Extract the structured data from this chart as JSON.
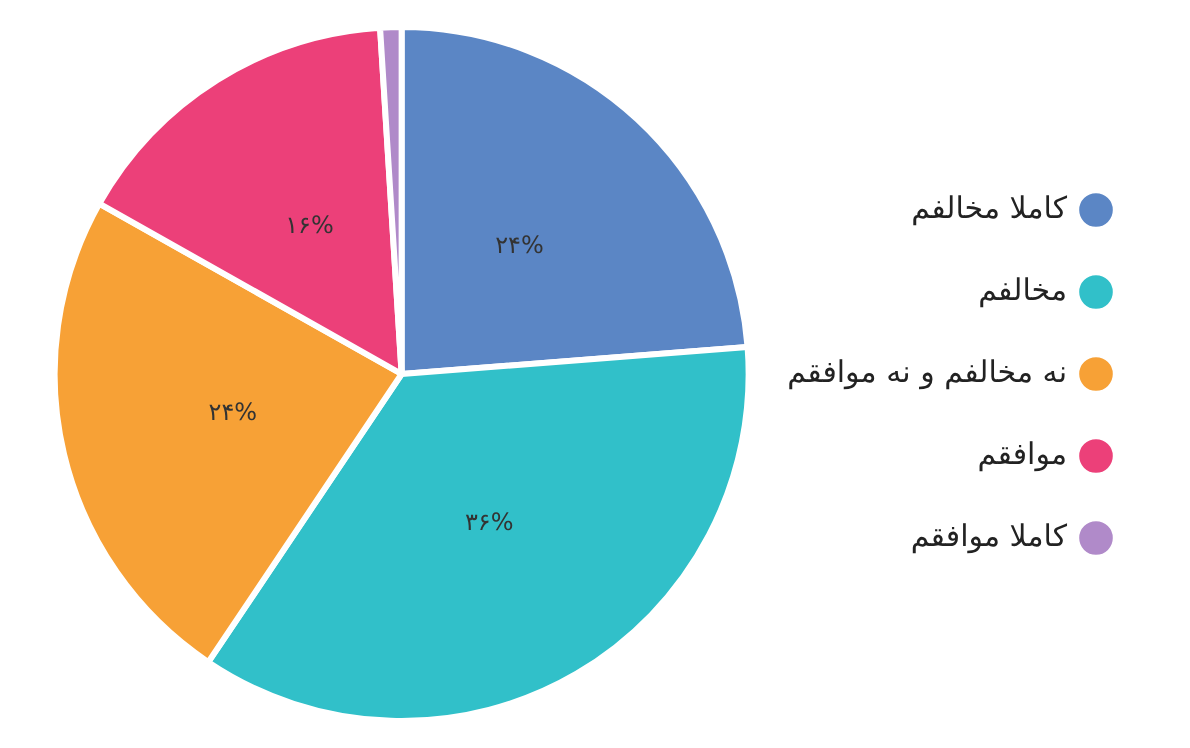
{
  "chart_data": {
    "type": "pie",
    "categories": [
      "کاملا مخالفم",
      "مخالفم",
      "نه مخالفم و نه موافقم",
      "موافقم",
      "کاملا موافقم"
    ],
    "values": [
      24,
      36,
      24,
      16,
      1
    ],
    "value_labels": [
      "۲۴%",
      "۳۶%",
      "۲۴%",
      "۱۶%",
      null
    ],
    "colors": [
      "#5b86c5",
      "#31c0c9",
      "#f7a136",
      "#ec4079",
      "#b08ac9"
    ],
    "legend": "right"
  }
}
